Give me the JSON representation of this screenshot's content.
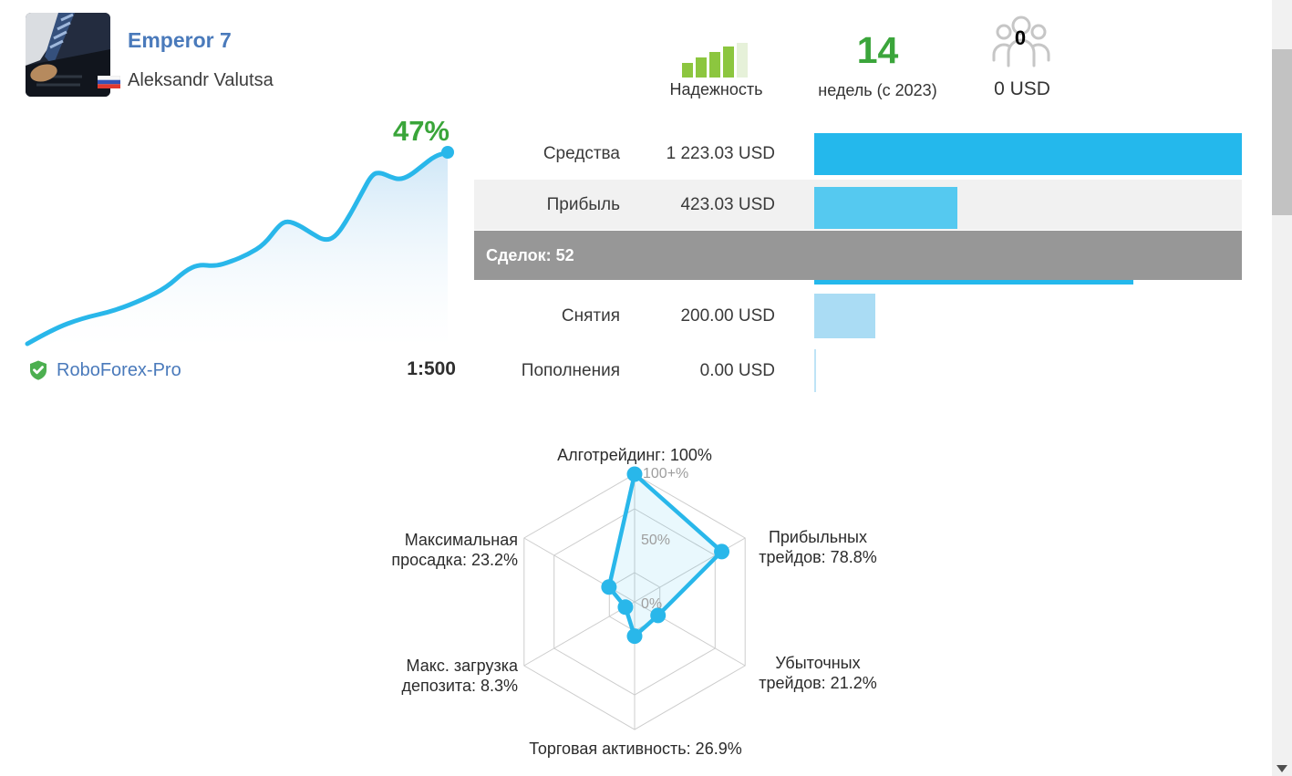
{
  "profile": {
    "title": "Emperor 7",
    "owner": "Aleksandr Valutsa",
    "country": "Russia"
  },
  "summary": {
    "reliability_label": "Надежность",
    "reliability_level": 4,
    "reliability_max": 5,
    "reliability_color_active": "#8cc63f",
    "reliability_color_inactive": "#e6f1d9",
    "weeks_value": "14",
    "weeks_label": "недель (с 2023)",
    "investors_count": "0",
    "investors_funds": "0 USD"
  },
  "growth": {
    "gain": "47%",
    "broker": "RoboForex-Pro",
    "leverage": "1:500"
  },
  "stats": {
    "trades_overlay": "Сделок: 52",
    "rows": [
      {
        "label": "Средства",
        "value": "1 223.03 USD",
        "bar_pct": 100,
        "bar_color": "#24b8ec",
        "row_bg": "#ffffff"
      },
      {
        "label": "Прибыль",
        "value": "423.03 USD",
        "bar_pct": 33.5,
        "bar_color": "#55c9f0",
        "row_bg": "#f1f1f1"
      },
      {
        "label": "",
        "value": "",
        "bar_pct": 74.6,
        "bar_color": "#24b8ec",
        "row_bg": "#ffffff"
      },
      {
        "label": "Снятия",
        "value": "200.00 USD",
        "bar_pct": 14.3,
        "bar_color": "#aadcf4",
        "row_bg": "#ffffff"
      },
      {
        "label": "Пополнения",
        "value": "0.00 USD",
        "bar_pct": 0.45,
        "bar_color": "#bfe4f6",
        "row_bg": "#ffffff"
      }
    ]
  },
  "radar_labels": {
    "top": "Алготрейдинг: 100%",
    "right_top_1": "Прибыльных",
    "right_top_2": "трейдов: 78.8%",
    "right_bottom_1": "Убыточных",
    "right_bottom_2": "трейдов: 21.2%",
    "bottom": "Торговая активность: 26.9%",
    "left_bottom_1": "Макс. загрузка",
    "left_bottom_2": "депозита: 8.3%",
    "left_top_1": "Максимальная",
    "left_top_2": "просадка: 23.2%",
    "tick_outer": "100+%",
    "tick_mid": "50%",
    "tick_center": "0%"
  },
  "chart_data": [
    {
      "type": "area",
      "name": "growth-curve",
      "end_label": "47%",
      "line_color": "#29b7ea",
      "points": [
        [
          30,
          377
        ],
        [
          58,
          361
        ],
        [
          90,
          349
        ],
        [
          125,
          341
        ],
        [
          158,
          328
        ],
        [
          183,
          315
        ],
        [
          203,
          297
        ],
        [
          218,
          290
        ],
        [
          236,
          292
        ],
        [
          253,
          287
        ],
        [
          272,
          279
        ],
        [
          290,
          268
        ],
        [
          306,
          247
        ],
        [
          315,
          242
        ],
        [
          328,
          247
        ],
        [
          342,
          256
        ],
        [
          356,
          264
        ],
        [
          368,
          260
        ],
        [
          382,
          239
        ],
        [
          396,
          213
        ],
        [
          408,
          191
        ],
        [
          417,
          189
        ],
        [
          428,
          194
        ],
        [
          438,
          197
        ],
        [
          449,
          193
        ],
        [
          463,
          182
        ],
        [
          477,
          171
        ],
        [
          491,
          167
        ]
      ]
    },
    {
      "type": "radar",
      "color": "#29b7ea",
      "axes": [
        "Алготрейдинг",
        "Прибыльных трейдов",
        "Убыточных трейдов",
        "Торговая активность",
        "Макс. загрузка депозита",
        "Максимальная просадка"
      ],
      "values_pct": [
        100,
        78.8,
        21.2,
        26.9,
        8.3,
        23.2
      ],
      "ticks": [
        "100+%",
        "50%",
        "0%"
      ]
    }
  ],
  "colors": {
    "accent_blue": "#29b7ea",
    "link_blue": "#4a7abb",
    "green": "#3ba53b",
    "banner_gray": "#979797"
  }
}
